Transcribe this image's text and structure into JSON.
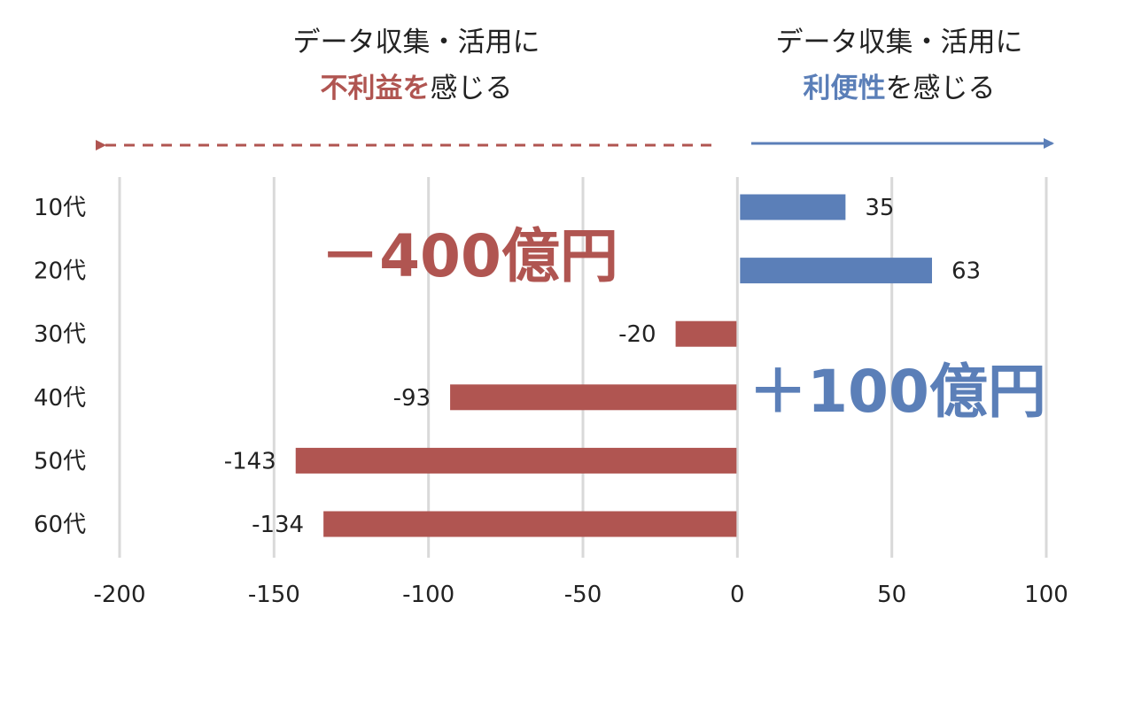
{
  "header": {
    "left": {
      "line1": "データ収集・活用に",
      "emph": "不利益を",
      "rest": "感じる"
    },
    "right": {
      "line1": "データ収集・活用に",
      "emph": "利便性",
      "rest": "を感じる"
    }
  },
  "annotations": {
    "negative_total": "－400億円",
    "positive_total": "＋100億円"
  },
  "colors": {
    "negative": "#b05551",
    "positive": "#5b7fb8",
    "grid": "#d9d9d9"
  },
  "chart_data": {
    "type": "bar",
    "orientation": "horizontal",
    "categories": [
      "10代",
      "20代",
      "30代",
      "40代",
      "50代",
      "60代"
    ],
    "values": [
      35,
      63,
      -20,
      -93,
      -143,
      -134
    ],
    "xlim": [
      -200,
      100
    ],
    "xticks": [
      -200,
      -150,
      -100,
      -50,
      0,
      50,
      100
    ],
    "grid": true,
    "title": "",
    "xlabel": "",
    "ylabel": ""
  }
}
